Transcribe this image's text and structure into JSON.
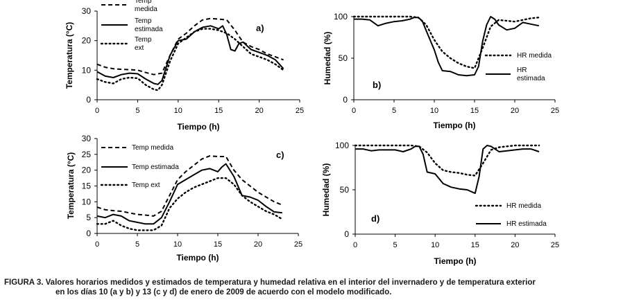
{
  "chart_data": [
    {
      "panel": "a)",
      "type": "line",
      "xlabel": "Tiempo (h)",
      "ylabel": "Temperatura (°C)",
      "xlim": [
        0,
        25
      ],
      "ylim": [
        0,
        30
      ],
      "xticks": [
        "0",
        "5",
        "10",
        "15",
        "20",
        "25"
      ],
      "yticks": [
        "0",
        "10",
        "20",
        "30"
      ],
      "legend_position": "top-left",
      "series": [
        {
          "name": "Temp medida",
          "name_lines": [
            "Temp",
            "medida"
          ],
          "style": "dashed",
          "x": [
            0,
            1,
            2,
            3,
            4,
            5,
            6,
            7,
            8,
            9,
            10,
            11,
            12,
            13,
            14,
            15,
            16,
            17,
            18,
            19,
            20,
            21,
            22,
            23
          ],
          "y": [
            12,
            11,
            10.5,
            10.3,
            10.2,
            10,
            9.2,
            8.5,
            9,
            15,
            20.5,
            22.5,
            25,
            27,
            27.5,
            27.3,
            27,
            23.5,
            19.5,
            18,
            17,
            15.5,
            14.5,
            13.5
          ]
        },
        {
          "name": "Temp estimada",
          "name_lines": [
            "Temp",
            "estimada"
          ],
          "style": "solid",
          "x": [
            0,
            1,
            2,
            3,
            4,
            5,
            6,
            7,
            7.5,
            8,
            9,
            10,
            11,
            12,
            13,
            14,
            15,
            15.5,
            16,
            16.5,
            17,
            17.5,
            18,
            19,
            20,
            21,
            22,
            23
          ],
          "y": [
            9.5,
            8,
            7.5,
            8.5,
            9,
            8.8,
            7,
            5.5,
            5.2,
            6.5,
            15,
            20,
            20.5,
            23,
            24.5,
            25,
            24,
            25,
            22,
            17,
            16.5,
            19,
            19.5,
            17,
            16,
            15,
            13.5,
            10.5
          ]
        },
        {
          "name": "Temp ext",
          "name_lines": [
            "Temp",
            "ext"
          ],
          "style": "dotted",
          "x": [
            0,
            1,
            2,
            3,
            4,
            5,
            6,
            7,
            7.5,
            8,
            9,
            10,
            11,
            12,
            13,
            14,
            15,
            16,
            17,
            18,
            19,
            20,
            21,
            22,
            23
          ],
          "y": [
            7,
            6,
            5.5,
            7,
            7.5,
            7.3,
            5,
            3.5,
            3.2,
            5,
            13,
            19,
            21,
            23,
            24,
            24,
            23.5,
            22.5,
            20.5,
            18,
            15.5,
            14.5,
            13.5,
            12,
            10
          ]
        }
      ]
    },
    {
      "panel": "b)",
      "type": "line",
      "xlabel": "Tiempo (h)",
      "ylabel": "Humedad (%)",
      "xlim": [
        0,
        25
      ],
      "ylim": [
        0,
        100
      ],
      "xticks": [
        "0",
        "5",
        "10",
        "15",
        "20",
        "25"
      ],
      "yticks": [
        "0",
        "50",
        "100"
      ],
      "legend_position": "bottom-right",
      "series": [
        {
          "name": "HR medida",
          "name_lines": [
            "HR medida"
          ],
          "style": "dotted",
          "x": [
            0,
            1,
            2,
            3,
            4,
            5,
            6,
            7,
            8,
            9,
            10,
            11,
            12,
            13,
            14,
            15,
            16,
            17,
            18,
            19,
            20,
            21,
            22,
            23
          ],
          "y": [
            100,
            100,
            100,
            100,
            100,
            100,
            100,
            100,
            99,
            90,
            72,
            58,
            50,
            44,
            40,
            38,
            62,
            88,
            96,
            95,
            94,
            96,
            98,
            99
          ]
        },
        {
          "name": "HR estimada",
          "name_lines": [
            "HR",
            "estimada"
          ],
          "style": "solid",
          "x": [
            0,
            1,
            2,
            3,
            4,
            5,
            6,
            7,
            7.5,
            8,
            8.5,
            9,
            10,
            10.5,
            11,
            12,
            13,
            14,
            15,
            15.5,
            16,
            16.5,
            17,
            17.5,
            18,
            19,
            20,
            21,
            22,
            23
          ],
          "y": [
            97,
            97,
            96,
            89,
            92,
            94,
            95,
            97,
            99,
            99,
            95,
            83,
            60,
            45,
            35,
            34,
            30,
            29,
            30,
            40,
            70,
            90,
            100,
            97,
            90,
            84,
            86,
            93,
            91,
            89
          ]
        }
      ]
    },
    {
      "panel": "c)",
      "type": "line",
      "xlabel": "Tiempo (h)",
      "ylabel": "Temperatura (°C)",
      "xlim": [
        0,
        25
      ],
      "ylim": [
        0,
        30
      ],
      "xticks": [
        "0",
        "5",
        "10",
        "15",
        "20",
        "25"
      ],
      "yticks": [
        "0",
        "5",
        "10",
        "15",
        "20",
        "25",
        "30"
      ],
      "legend_position": "top-left",
      "series": [
        {
          "name": "Temp medida",
          "name_lines": [
            "Temp medida"
          ],
          "style": "dashed",
          "x": [
            0,
            1,
            2,
            3,
            4,
            5,
            6,
            7,
            8,
            9,
            10,
            11,
            12,
            13,
            14,
            15,
            16,
            17,
            18,
            19,
            20,
            21,
            22,
            23
          ],
          "y": [
            8.3,
            7.5,
            7.2,
            7,
            6.5,
            6,
            5.8,
            5.5,
            7,
            12,
            17,
            19.5,
            21.5,
            23.5,
            24.5,
            24.3,
            24.3,
            20,
            17,
            15,
            13,
            11.5,
            10,
            9
          ]
        },
        {
          "name": "Temp estimada",
          "name_lines": [
            "Temp estimada"
          ],
          "style": "solid",
          "x": [
            0,
            1,
            2,
            3,
            4,
            5,
            6,
            7,
            8,
            9,
            10,
            11,
            12,
            13,
            14,
            15,
            15.5,
            16,
            17,
            18,
            19,
            20,
            21,
            22,
            23
          ],
          "y": [
            5.5,
            5,
            6,
            5.5,
            4,
            3.5,
            3,
            3,
            5,
            10,
            15.5,
            17,
            18.5,
            20,
            20.5,
            19.5,
            21,
            22,
            18,
            12,
            11.5,
            10.5,
            8.5,
            6.8,
            6.5
          ]
        },
        {
          "name": "Temp ext",
          "name_lines": [
            "Temp ext"
          ],
          "style": "dotted",
          "x": [
            0,
            1,
            2,
            3,
            4,
            5,
            6,
            7,
            8,
            9,
            10,
            11,
            12,
            13,
            14,
            15,
            16,
            17,
            18,
            19,
            20,
            21,
            22,
            23
          ],
          "y": [
            3,
            3,
            4,
            2.5,
            1.5,
            1,
            1,
            1,
            2.5,
            8,
            11,
            13,
            14.5,
            15.5,
            16.5,
            17.5,
            17.5,
            15.5,
            12,
            10,
            8.5,
            7,
            6,
            4.5
          ]
        }
      ]
    },
    {
      "panel": "d)",
      "type": "line",
      "xlabel": "Tiempo (h)",
      "ylabel": "Humedad (%)",
      "xlim": [
        0,
        25
      ],
      "ylim": [
        0,
        100
      ],
      "xticks": [
        "0",
        "5",
        "10",
        "15",
        "20",
        "25"
      ],
      "yticks": [
        "0",
        "50",
        "100"
      ],
      "legend_position": "bottom-right",
      "series": [
        {
          "name": "HR medida",
          "name_lines": [
            "HR medida"
          ],
          "style": "dotted",
          "x": [
            0,
            1,
            2,
            3,
            4,
            5,
            6,
            7,
            8,
            9,
            10,
            11,
            12,
            13,
            14,
            15,
            16,
            17,
            18,
            19,
            20,
            21,
            22,
            23
          ],
          "y": [
            100,
            100,
            100,
            100,
            100,
            100,
            100,
            100,
            99,
            92,
            80,
            72,
            70,
            69,
            67,
            66,
            80,
            95,
            98,
            99,
            100,
            100,
            100,
            100
          ]
        },
        {
          "name": "HR estimada",
          "name_lines": [
            "HR estimada"
          ],
          "style": "solid",
          "x": [
            0,
            1,
            2,
            3,
            4,
            5,
            6,
            7,
            7.5,
            8,
            8.5,
            9,
            10,
            11,
            12,
            13,
            14,
            15,
            15.5,
            16,
            16.5,
            17,
            18,
            19,
            20,
            21,
            22,
            23
          ],
          "y": [
            96,
            96,
            94,
            95,
            95,
            95,
            93,
            96,
            99,
            99,
            90,
            70,
            68,
            57,
            53,
            51,
            50,
            46,
            65,
            96,
            100,
            99,
            93,
            94,
            95,
            96,
            96,
            93
          ]
        }
      ]
    }
  ],
  "caption": {
    "line1": "FIGURA 3. Valores horarios medidos y estimados de temperatura y humedad relativa en el interior del invernadero y de temperatura exterior",
    "line2": "en los días 10 (a y b) y 13 (c y d) de enero de 2009 de acuerdo con el modelo modificado."
  }
}
